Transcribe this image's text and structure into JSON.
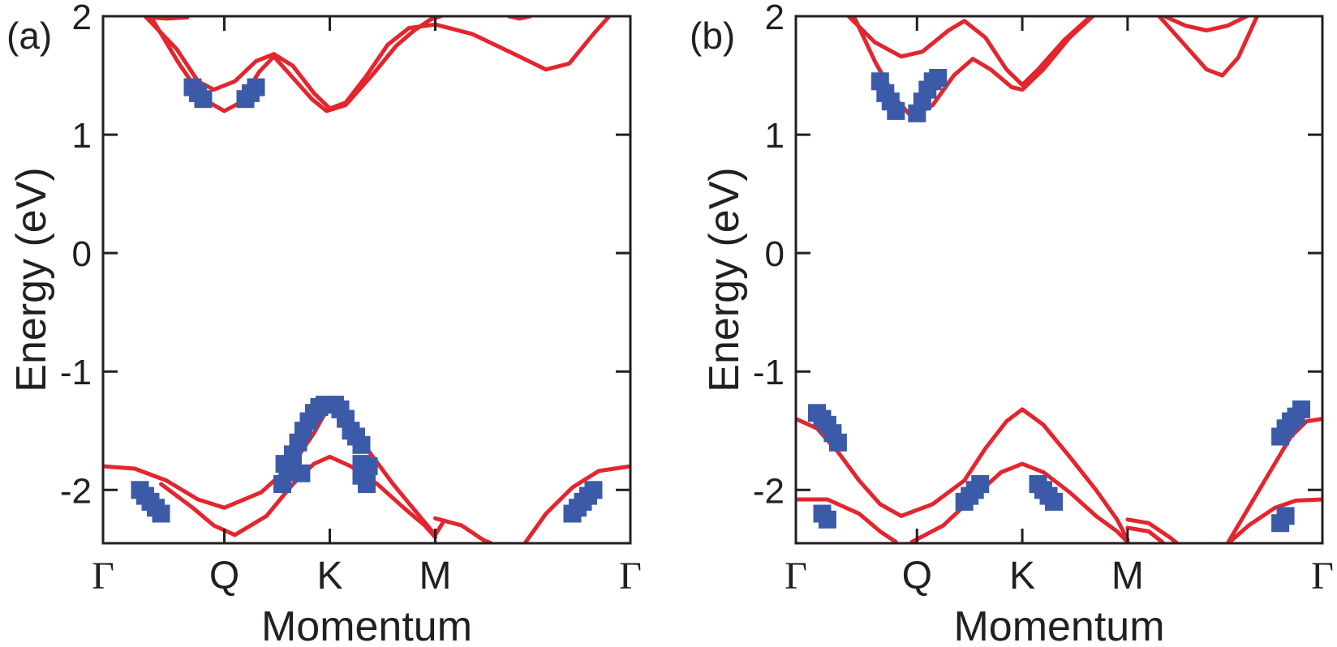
{
  "chart_data": [
    {
      "type": "line",
      "panel_label": "(a)",
      "ylabel": "Energy (eV)",
      "xlabel": "Momentum",
      "ylim": [
        -2.45,
        2.0
      ],
      "yticks": [
        2,
        1,
        0,
        -1,
        -2
      ],
      "ytick_labels": [
        "2",
        "1",
        "0",
        "-1",
        "-2"
      ],
      "xlim": [
        0,
        5
      ],
      "xticks": [
        0,
        1.15,
        2.15,
        3.15,
        5
      ],
      "xtick_labels": [
        "Γ",
        "Q",
        "K",
        "M",
        "Γ"
      ],
      "grid": false,
      "series": [
        {
          "values": [
            [
              0.4,
              2.0
            ],
            [
              0.7,
              1.72
            ],
            [
              0.9,
              1.45
            ],
            [
              1.05,
              1.38
            ],
            [
              1.25,
              1.45
            ],
            [
              1.45,
              1.62
            ],
            [
              1.62,
              1.68
            ],
            [
              1.8,
              1.58
            ],
            [
              2.0,
              1.35
            ],
            [
              2.15,
              1.22
            ],
            [
              2.3,
              1.27
            ],
            [
              2.5,
              1.5
            ],
            [
              2.7,
              1.76
            ],
            [
              2.9,
              1.9
            ],
            [
              3.15,
              1.93
            ],
            [
              3.5,
              1.85
            ],
            [
              3.9,
              1.68
            ],
            [
              4.2,
              1.55
            ],
            [
              4.42,
              1.6
            ],
            [
              4.65,
              1.85
            ],
            [
              4.8,
              2.0
            ]
          ]
        },
        {
          "values": [
            [
              0.45,
              2.0
            ],
            [
              0.72,
              1.6
            ],
            [
              0.95,
              1.3
            ],
            [
              1.15,
              1.2
            ],
            [
              1.3,
              1.27
            ],
            [
              1.48,
              1.53
            ],
            [
              1.62,
              1.66
            ],
            [
              1.78,
              1.5
            ],
            [
              1.98,
              1.3
            ],
            [
              2.12,
              1.2
            ],
            [
              2.3,
              1.25
            ],
            [
              2.55,
              1.5
            ],
            [
              2.78,
              1.75
            ],
            [
              2.95,
              1.88
            ],
            [
              3.1,
              1.97
            ],
            [
              3.2,
              2.0
            ]
          ]
        },
        {
          "values": [
            [
              0.45,
              1.99
            ],
            [
              0.6,
              1.98
            ],
            [
              0.8,
              1.99
            ]
          ]
        },
        {
          "values": [
            [
              3.85,
              2.0
            ],
            [
              3.95,
              1.98
            ],
            [
              4.05,
              2.0
            ]
          ]
        },
        {
          "values": [
            [
              0.0,
              -1.8
            ],
            [
              0.3,
              -1.82
            ],
            [
              0.6,
              -1.92
            ],
            [
              0.9,
              -2.08
            ],
            [
              1.15,
              -2.15
            ],
            [
              1.5,
              -2.02
            ],
            [
              1.8,
              -1.78
            ],
            [
              2.0,
              -1.52
            ],
            [
              2.15,
              -1.28
            ],
            [
              2.3,
              -1.4
            ],
            [
              2.5,
              -1.65
            ],
            [
              2.75,
              -1.95
            ],
            [
              3.0,
              -2.22
            ],
            [
              3.15,
              -2.38
            ],
            [
              3.22,
              -2.28
            ]
          ]
        },
        {
          "values": [
            [
              0.55,
              -1.95
            ],
            [
              0.85,
              -2.15
            ],
            [
              1.05,
              -2.3
            ],
            [
              1.25,
              -2.38
            ],
            [
              1.55,
              -2.22
            ],
            [
              1.8,
              -1.95
            ],
            [
              2.0,
              -1.78
            ],
            [
              2.15,
              -1.72
            ],
            [
              2.35,
              -1.8
            ],
            [
              2.6,
              -1.95
            ],
            [
              2.85,
              -2.15
            ],
            [
              3.05,
              -2.3
            ],
            [
              3.15,
              -2.4
            ]
          ]
        },
        {
          "values": [
            [
              3.15,
              -2.24
            ],
            [
              3.4,
              -2.3
            ],
            [
              3.6,
              -2.42
            ],
            [
              3.68,
              -2.45
            ]
          ]
        },
        {
          "values": [
            [
              4.0,
              -2.45
            ],
            [
              4.2,
              -2.2
            ],
            [
              4.45,
              -1.98
            ],
            [
              4.7,
              -1.84
            ],
            [
              5.0,
              -1.8
            ]
          ]
        }
      ],
      "projection_points": [
        [
          0.35,
          -2.0
        ],
        [
          0.4,
          -2.05
        ],
        [
          0.45,
          -2.1
        ],
        [
          0.5,
          -2.15
        ],
        [
          0.55,
          -2.2
        ],
        [
          0.85,
          1.4
        ],
        [
          0.9,
          1.35
        ],
        [
          0.95,
          1.3
        ],
        [
          1.35,
          1.3
        ],
        [
          1.4,
          1.35
        ],
        [
          1.45,
          1.4
        ],
        [
          1.7,
          -1.95
        ],
        [
          1.75,
          -1.85
        ],
        [
          1.8,
          -1.7
        ],
        [
          1.85,
          -1.6
        ],
        [
          1.9,
          -1.5
        ],
        [
          1.95,
          -1.42
        ],
        [
          2.0,
          -1.35
        ],
        [
          2.05,
          -1.3
        ],
        [
          2.1,
          -1.28
        ],
        [
          2.2,
          -1.28
        ],
        [
          2.25,
          -1.32
        ],
        [
          2.3,
          -1.4
        ],
        [
          2.35,
          -1.5
        ],
        [
          2.4,
          -1.55
        ],
        [
          2.45,
          -1.62
        ],
        [
          1.72,
          -1.78
        ],
        [
          1.8,
          -1.82
        ],
        [
          1.88,
          -1.86
        ],
        [
          2.45,
          -1.78
        ],
        [
          2.52,
          -1.8
        ],
        [
          2.45,
          -1.88
        ],
        [
          2.5,
          -1.95
        ],
        [
          4.5,
          -2.15
        ],
        [
          4.55,
          -2.1
        ],
        [
          4.6,
          -2.05
        ],
        [
          4.65,
          -2.0
        ],
        [
          4.45,
          -2.2
        ]
      ]
    },
    {
      "type": "line",
      "panel_label": "(b)",
      "ylabel": "Energy (eV)",
      "xlabel": "Momentum",
      "ylim": [
        -2.45,
        2.0
      ],
      "yticks": [
        2,
        1,
        0,
        -1,
        -2
      ],
      "ytick_labels": [
        "2",
        "1",
        "0",
        "-1",
        "-2"
      ],
      "xlim": [
        0,
        5
      ],
      "xticks": [
        0,
        1.15,
        2.15,
        3.15,
        5
      ],
      "xtick_labels": [
        "Γ",
        "Q",
        "K",
        "M",
        "Γ"
      ],
      "grid": false,
      "series": [
        {
          "values": [
            [
              0.5,
              2.0
            ],
            [
              0.75,
              1.78
            ],
            [
              1.0,
              1.66
            ],
            [
              1.2,
              1.7
            ],
            [
              1.45,
              1.88
            ],
            [
              1.6,
              1.96
            ],
            [
              1.8,
              1.82
            ],
            [
              2.0,
              1.55
            ],
            [
              2.15,
              1.42
            ],
            [
              2.3,
              1.55
            ],
            [
              2.55,
              1.8
            ],
            [
              2.8,
              2.0
            ]
          ]
        },
        {
          "values": [
            [
              0.55,
              2.0
            ],
            [
              0.75,
              1.62
            ],
            [
              0.95,
              1.3
            ],
            [
              1.1,
              1.15
            ],
            [
              1.3,
              1.25
            ],
            [
              1.5,
              1.5
            ],
            [
              1.68,
              1.64
            ],
            [
              1.85,
              1.55
            ],
            [
              2.05,
              1.4
            ],
            [
              2.15,
              1.38
            ],
            [
              2.35,
              1.55
            ],
            [
              2.6,
              1.82
            ],
            [
              2.82,
              2.0
            ]
          ]
        },
        {
          "values": [
            [
              3.5,
              2.0
            ],
            [
              3.7,
              1.92
            ],
            [
              3.9,
              1.88
            ],
            [
              4.1,
              1.92
            ],
            [
              4.28,
              2.0
            ]
          ]
        },
        {
          "values": [
            [
              3.45,
              2.0
            ],
            [
              3.7,
              1.75
            ],
            [
              3.9,
              1.55
            ],
            [
              4.05,
              1.5
            ],
            [
              4.2,
              1.65
            ],
            [
              4.38,
              2.0
            ]
          ]
        },
        {
          "values": [
            [
              0.0,
              -1.4
            ],
            [
              0.2,
              -1.48
            ],
            [
              0.4,
              -1.68
            ],
            [
              0.6,
              -1.92
            ],
            [
              0.8,
              -2.12
            ],
            [
              1.0,
              -2.22
            ],
            [
              1.3,
              -2.12
            ],
            [
              1.6,
              -1.92
            ],
            [
              1.8,
              -1.65
            ],
            [
              2.0,
              -1.42
            ],
            [
              2.15,
              -1.32
            ],
            [
              2.35,
              -1.45
            ],
            [
              2.6,
              -1.72
            ],
            [
              2.85,
              -2.0
            ],
            [
              3.05,
              -2.25
            ],
            [
              3.15,
              -2.42
            ]
          ]
        },
        {
          "values": [
            [
              0.0,
              -2.08
            ],
            [
              0.3,
              -2.08
            ],
            [
              0.6,
              -2.2
            ],
            [
              0.8,
              -2.35
            ],
            [
              0.95,
              -2.44
            ]
          ]
        },
        {
          "values": [
            [
              1.1,
              -2.44
            ],
            [
              1.4,
              -2.3
            ],
            [
              1.7,
              -2.05
            ],
            [
              1.95,
              -1.85
            ],
            [
              2.15,
              -1.78
            ],
            [
              2.35,
              -1.85
            ],
            [
              2.6,
              -2.02
            ],
            [
              2.85,
              -2.22
            ],
            [
              3.05,
              -2.35
            ],
            [
              3.15,
              -2.44
            ]
          ]
        },
        {
          "values": [
            [
              3.15,
              -2.25
            ],
            [
              3.35,
              -2.28
            ],
            [
              3.55,
              -2.4
            ],
            [
              3.62,
              -2.45
            ]
          ]
        },
        {
          "values": [
            [
              3.15,
              -2.32
            ],
            [
              3.35,
              -2.35
            ],
            [
              3.48,
              -2.44
            ]
          ]
        },
        {
          "values": [
            [
              4.1,
              -2.45
            ],
            [
              4.3,
              -2.15
            ],
            [
              4.5,
              -1.85
            ],
            [
              4.7,
              -1.55
            ],
            [
              4.85,
              -1.42
            ],
            [
              5.0,
              -1.4
            ]
          ]
        },
        {
          "values": [
            [
              4.12,
              -2.44
            ],
            [
              4.3,
              -2.3
            ],
            [
              4.55,
              -2.15
            ],
            [
              4.75,
              -2.09
            ],
            [
              5.0,
              -2.08
            ]
          ]
        }
      ],
      "projection_points": [
        [
          0.2,
          -1.35
        ],
        [
          0.25,
          -1.4
        ],
        [
          0.3,
          -1.45
        ],
        [
          0.35,
          -1.52
        ],
        [
          0.4,
          -1.6
        ],
        [
          0.25,
          -2.2
        ],
        [
          0.3,
          -2.25
        ],
        [
          0.8,
          1.45
        ],
        [
          0.85,
          1.35
        ],
        [
          0.9,
          1.28
        ],
        [
          0.95,
          1.2
        ],
        [
          1.15,
          1.18
        ],
        [
          1.2,
          1.28
        ],
        [
          1.25,
          1.38
        ],
        [
          1.3,
          1.45
        ],
        [
          1.35,
          1.48
        ],
        [
          1.6,
          -2.1
        ],
        [
          1.65,
          -2.05
        ],
        [
          1.7,
          -2.0
        ],
        [
          1.75,
          -1.95
        ],
        [
          2.3,
          -1.95
        ],
        [
          2.35,
          -2.0
        ],
        [
          2.4,
          -2.05
        ],
        [
          2.45,
          -2.1
        ],
        [
          4.6,
          -1.55
        ],
        [
          4.65,
          -1.48
        ],
        [
          4.7,
          -1.42
        ],
        [
          4.75,
          -1.38
        ],
        [
          4.8,
          -1.32
        ],
        [
          4.6,
          -2.28
        ],
        [
          4.65,
          -2.22
        ]
      ]
    }
  ]
}
